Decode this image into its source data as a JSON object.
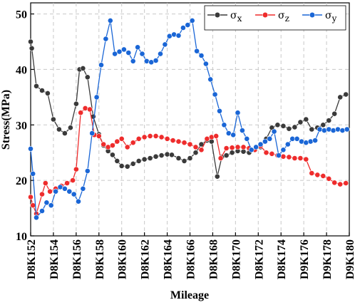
{
  "chart_data": {
    "type": "line",
    "xlabel": "Mileage",
    "ylabel": "Stress(MPa)",
    "xlim": [
      152,
      180
    ],
    "ylim": [
      10,
      52
    ],
    "yticks": [
      10,
      20,
      30,
      40,
      50
    ],
    "xtick_labels": [
      "D8K152",
      "D8K154",
      "D8K156",
      "D8K158",
      "D8K160",
      "D8K162",
      "D8K164",
      "D8K166",
      "D8K168",
      "D8K170",
      "D8K172",
      "D8K174",
      "D9K176",
      "D9K178",
      "D9K180"
    ],
    "grid": true,
    "legend_position": "top-right",
    "series": [
      {
        "name": "σx",
        "legend_base": "σ",
        "legend_sub": "x",
        "color": "#3a3a3a",
        "x": [
          152.0,
          152.1,
          152.5,
          153.0,
          153.5,
          154.0,
          154.5,
          155.0,
          155.5,
          156.0,
          156.3,
          156.6,
          157.0,
          157.5,
          158.0,
          158.4,
          158.8,
          159.2,
          159.6,
          160.0,
          160.5,
          161.0,
          161.5,
          162.0,
          162.5,
          163.0,
          163.5,
          164.0,
          164.4,
          165.0,
          165.5,
          166.0,
          166.5,
          167.0,
          167.5,
          167.9,
          168.4,
          168.8,
          169.2,
          169.7,
          170.2,
          170.7,
          171.2,
          171.7,
          172.2,
          172.7,
          173.2,
          173.7,
          174.2,
          174.7,
          175.2,
          175.7,
          176.2,
          176.7,
          177.2,
          177.7,
          178.2,
          178.7,
          179.2,
          179.7
        ],
        "y": [
          45.0,
          43.8,
          37.0,
          36.2,
          35.7,
          31.0,
          29.2,
          28.5,
          29.5,
          33.8,
          40.0,
          40.2,
          38.6,
          31.5,
          28.3,
          26.3,
          25.3,
          24.6,
          23.5,
          22.6,
          22.5,
          23.0,
          23.5,
          23.8,
          24.0,
          24.3,
          24.5,
          24.7,
          24.6,
          24.0,
          23.5,
          24.0,
          25.0,
          26.5,
          27.2,
          27.0,
          20.7,
          24.2,
          24.5,
          25.0,
          25.3,
          25.2,
          25.0,
          25.5,
          26.0,
          27.5,
          29.5,
          30.0,
          29.8,
          29.3,
          29.6,
          30.5,
          31.0,
          29.2,
          29.5,
          30.0,
          30.8,
          32.0,
          35.0,
          35.5
        ]
      },
      {
        "name": "σz",
        "legend_base": "σ",
        "legend_sub": "z",
        "color": "#ee2c2c",
        "x": [
          152.0,
          152.2,
          152.5,
          153.0,
          153.3,
          153.7,
          154.2,
          154.7,
          155.2,
          155.7,
          156.0,
          156.4,
          156.8,
          157.2,
          157.6,
          158.0,
          158.4,
          158.8,
          159.2,
          159.6,
          160.0,
          160.5,
          161.0,
          161.5,
          162.0,
          162.5,
          163.0,
          163.5,
          164.0,
          164.5,
          165.0,
          165.5,
          166.0,
          166.5,
          167.0,
          167.5,
          167.9,
          168.3,
          168.7,
          169.2,
          169.7,
          170.2,
          170.7,
          171.2,
          171.7,
          172.2,
          172.7,
          173.2,
          173.7,
          174.2,
          174.7,
          175.2,
          175.7,
          176.2,
          176.7,
          177.2,
          177.7,
          178.2,
          178.7,
          179.2,
          179.7
        ],
        "y": [
          17.0,
          15.5,
          14.0,
          17.5,
          19.5,
          18.0,
          18.5,
          19.0,
          19.5,
          20.0,
          22.0,
          32.2,
          33.0,
          32.8,
          28.2,
          28.0,
          26.5,
          26.0,
          26.3,
          27.0,
          27.5,
          26.0,
          26.8,
          27.5,
          27.8,
          28.0,
          28.0,
          27.8,
          27.5,
          27.2,
          27.0,
          26.8,
          26.5,
          26.0,
          25.5,
          27.5,
          27.8,
          28.0,
          24.0,
          25.8,
          25.9,
          26.0,
          26.0,
          25.8,
          25.5,
          26.2,
          25.0,
          24.8,
          24.5,
          24.3,
          24.2,
          24.0,
          24.0,
          23.8,
          21.3,
          21.0,
          20.8,
          20.3,
          19.6,
          19.3,
          19.5
        ]
      },
      {
        "name": "σy",
        "legend_base": "σ",
        "legend_sub": "y",
        "color": "#1a66d6",
        "x": [
          152.0,
          152.2,
          152.5,
          153.0,
          153.4,
          153.8,
          154.2,
          154.6,
          155.0,
          155.4,
          155.8,
          156.2,
          156.6,
          157.0,
          157.4,
          157.8,
          158.2,
          158.6,
          159.0,
          159.4,
          159.8,
          160.2,
          160.6,
          161.0,
          161.4,
          161.8,
          162.2,
          162.6,
          163.0,
          163.4,
          163.8,
          164.2,
          164.6,
          165.0,
          165.4,
          165.8,
          166.2,
          166.6,
          167.0,
          167.4,
          167.8,
          168.2,
          168.6,
          169.0,
          169.4,
          169.8,
          170.2,
          170.6,
          171.0,
          171.4,
          171.8,
          172.2,
          172.6,
          173.0,
          173.4,
          173.8,
          174.2,
          174.6,
          175.0,
          175.4,
          175.8,
          176.2,
          176.6,
          177.0,
          177.4,
          177.8,
          178.2,
          178.6,
          179.0,
          179.4,
          179.8
        ],
        "y": [
          25.7,
          21.2,
          13.3,
          14.5,
          16.0,
          15.5,
          18.0,
          18.8,
          18.5,
          18.0,
          17.5,
          16.2,
          18.5,
          21.7,
          28.5,
          35.0,
          40.8,
          45.5,
          48.8,
          42.8,
          43.2,
          43.6,
          43.0,
          41.5,
          44.0,
          42.8,
          41.5,
          41.3,
          41.6,
          42.8,
          44.5,
          46.0,
          46.3,
          46.1,
          47.5,
          48.0,
          48.8,
          43.3,
          42.5,
          41.0,
          38.2,
          35.5,
          32.5,
          30.0,
          28.5,
          28.2,
          32.2,
          29.0,
          27.5,
          25.5,
          26.0,
          26.5,
          27.0,
          27.5,
          28.8,
          24.5,
          25.5,
          26.5,
          27.5,
          27.5,
          27.0,
          26.8,
          27.0,
          27.2,
          29.2,
          29.0,
          29.2,
          29.0,
          29.2,
          29.0,
          29.2
        ]
      }
    ]
  }
}
